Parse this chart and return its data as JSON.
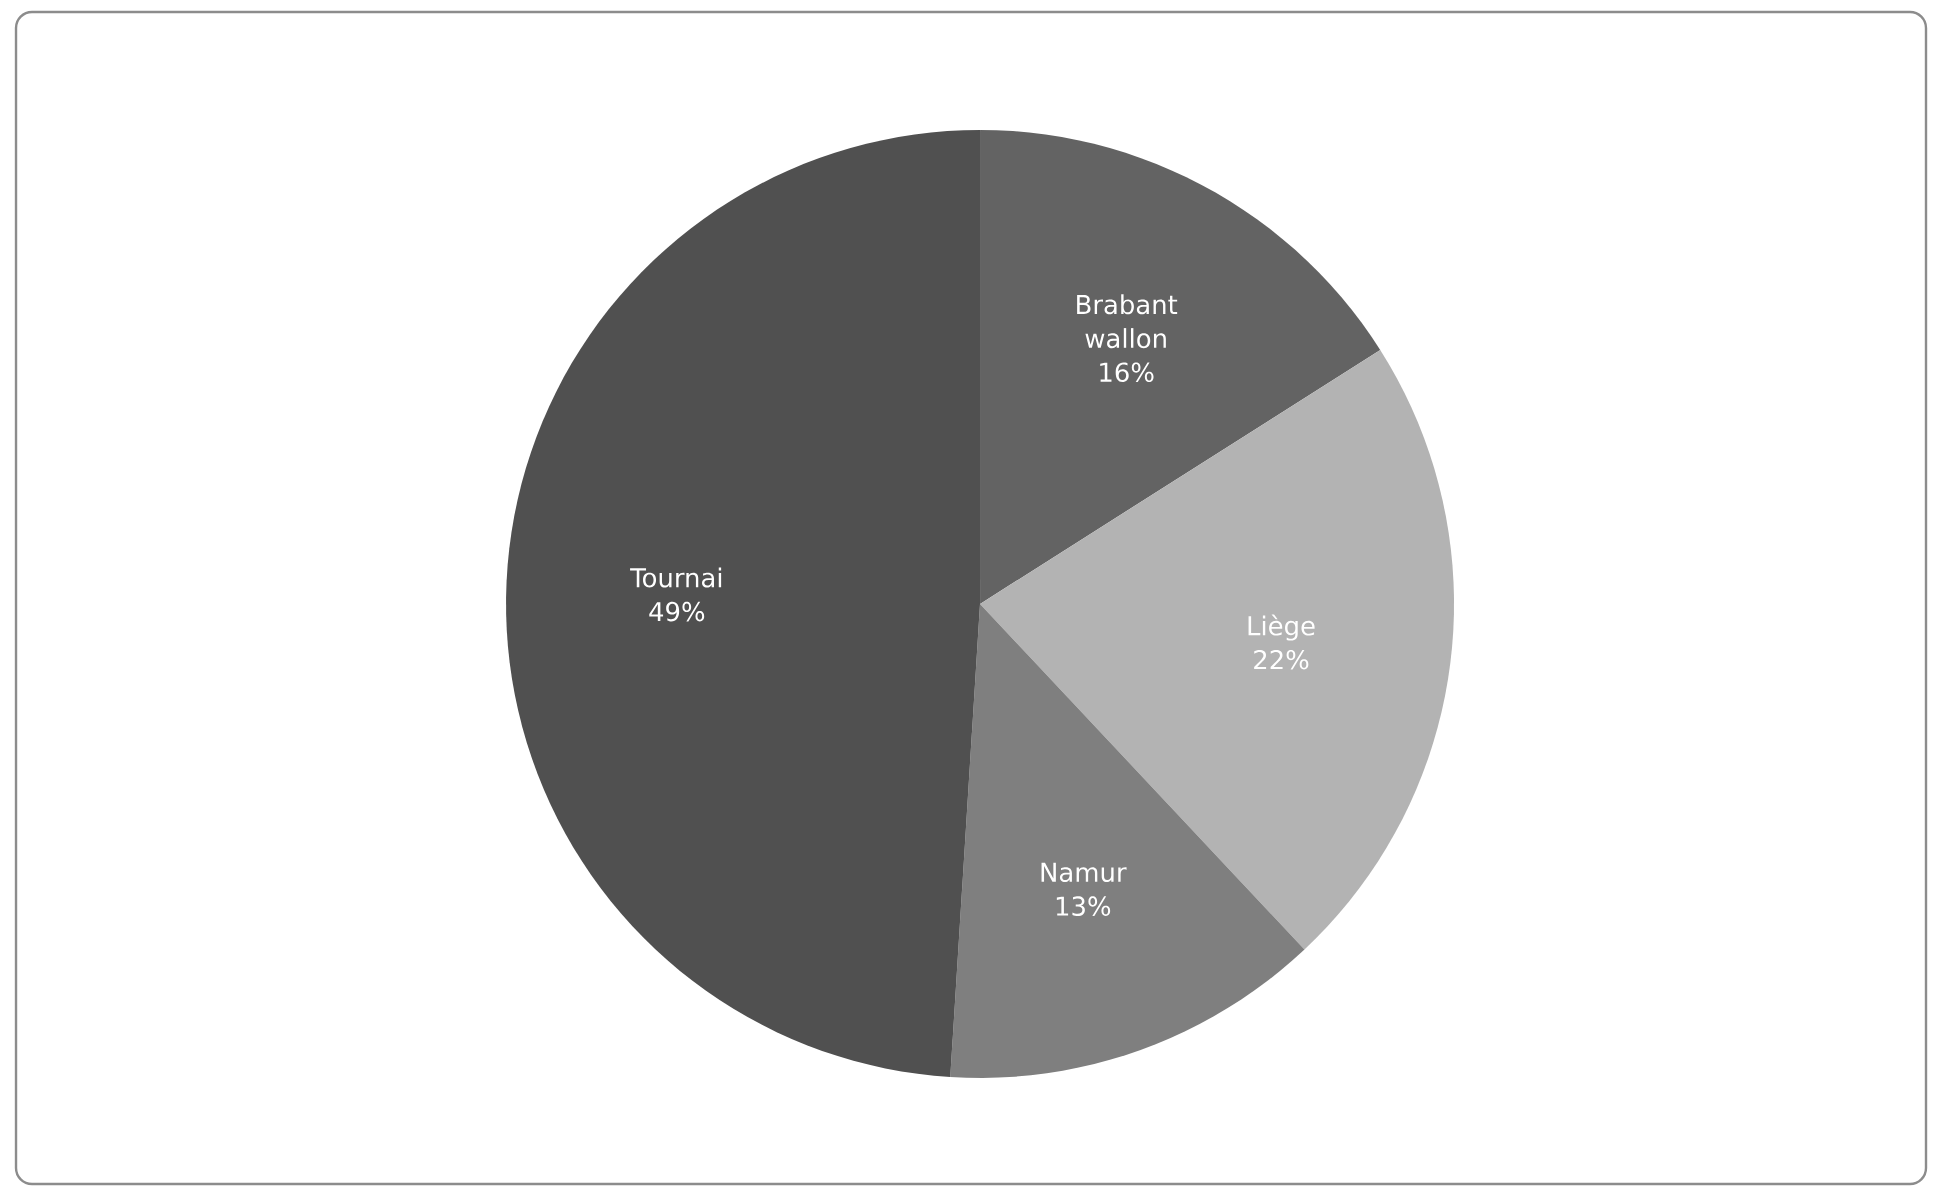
{
  "chart_data": {
    "type": "pie",
    "categories": [
      "Brabant wallon",
      "Liège",
      "Namur",
      "Tournai"
    ],
    "values": [
      16,
      22,
      13,
      49
    ],
    "value_labels": [
      "16%",
      "22%",
      "13%",
      "49%"
    ],
    "colors": [
      "#636363",
      "#b3b3b3",
      "#7f7f7f",
      "#505050"
    ]
  }
}
